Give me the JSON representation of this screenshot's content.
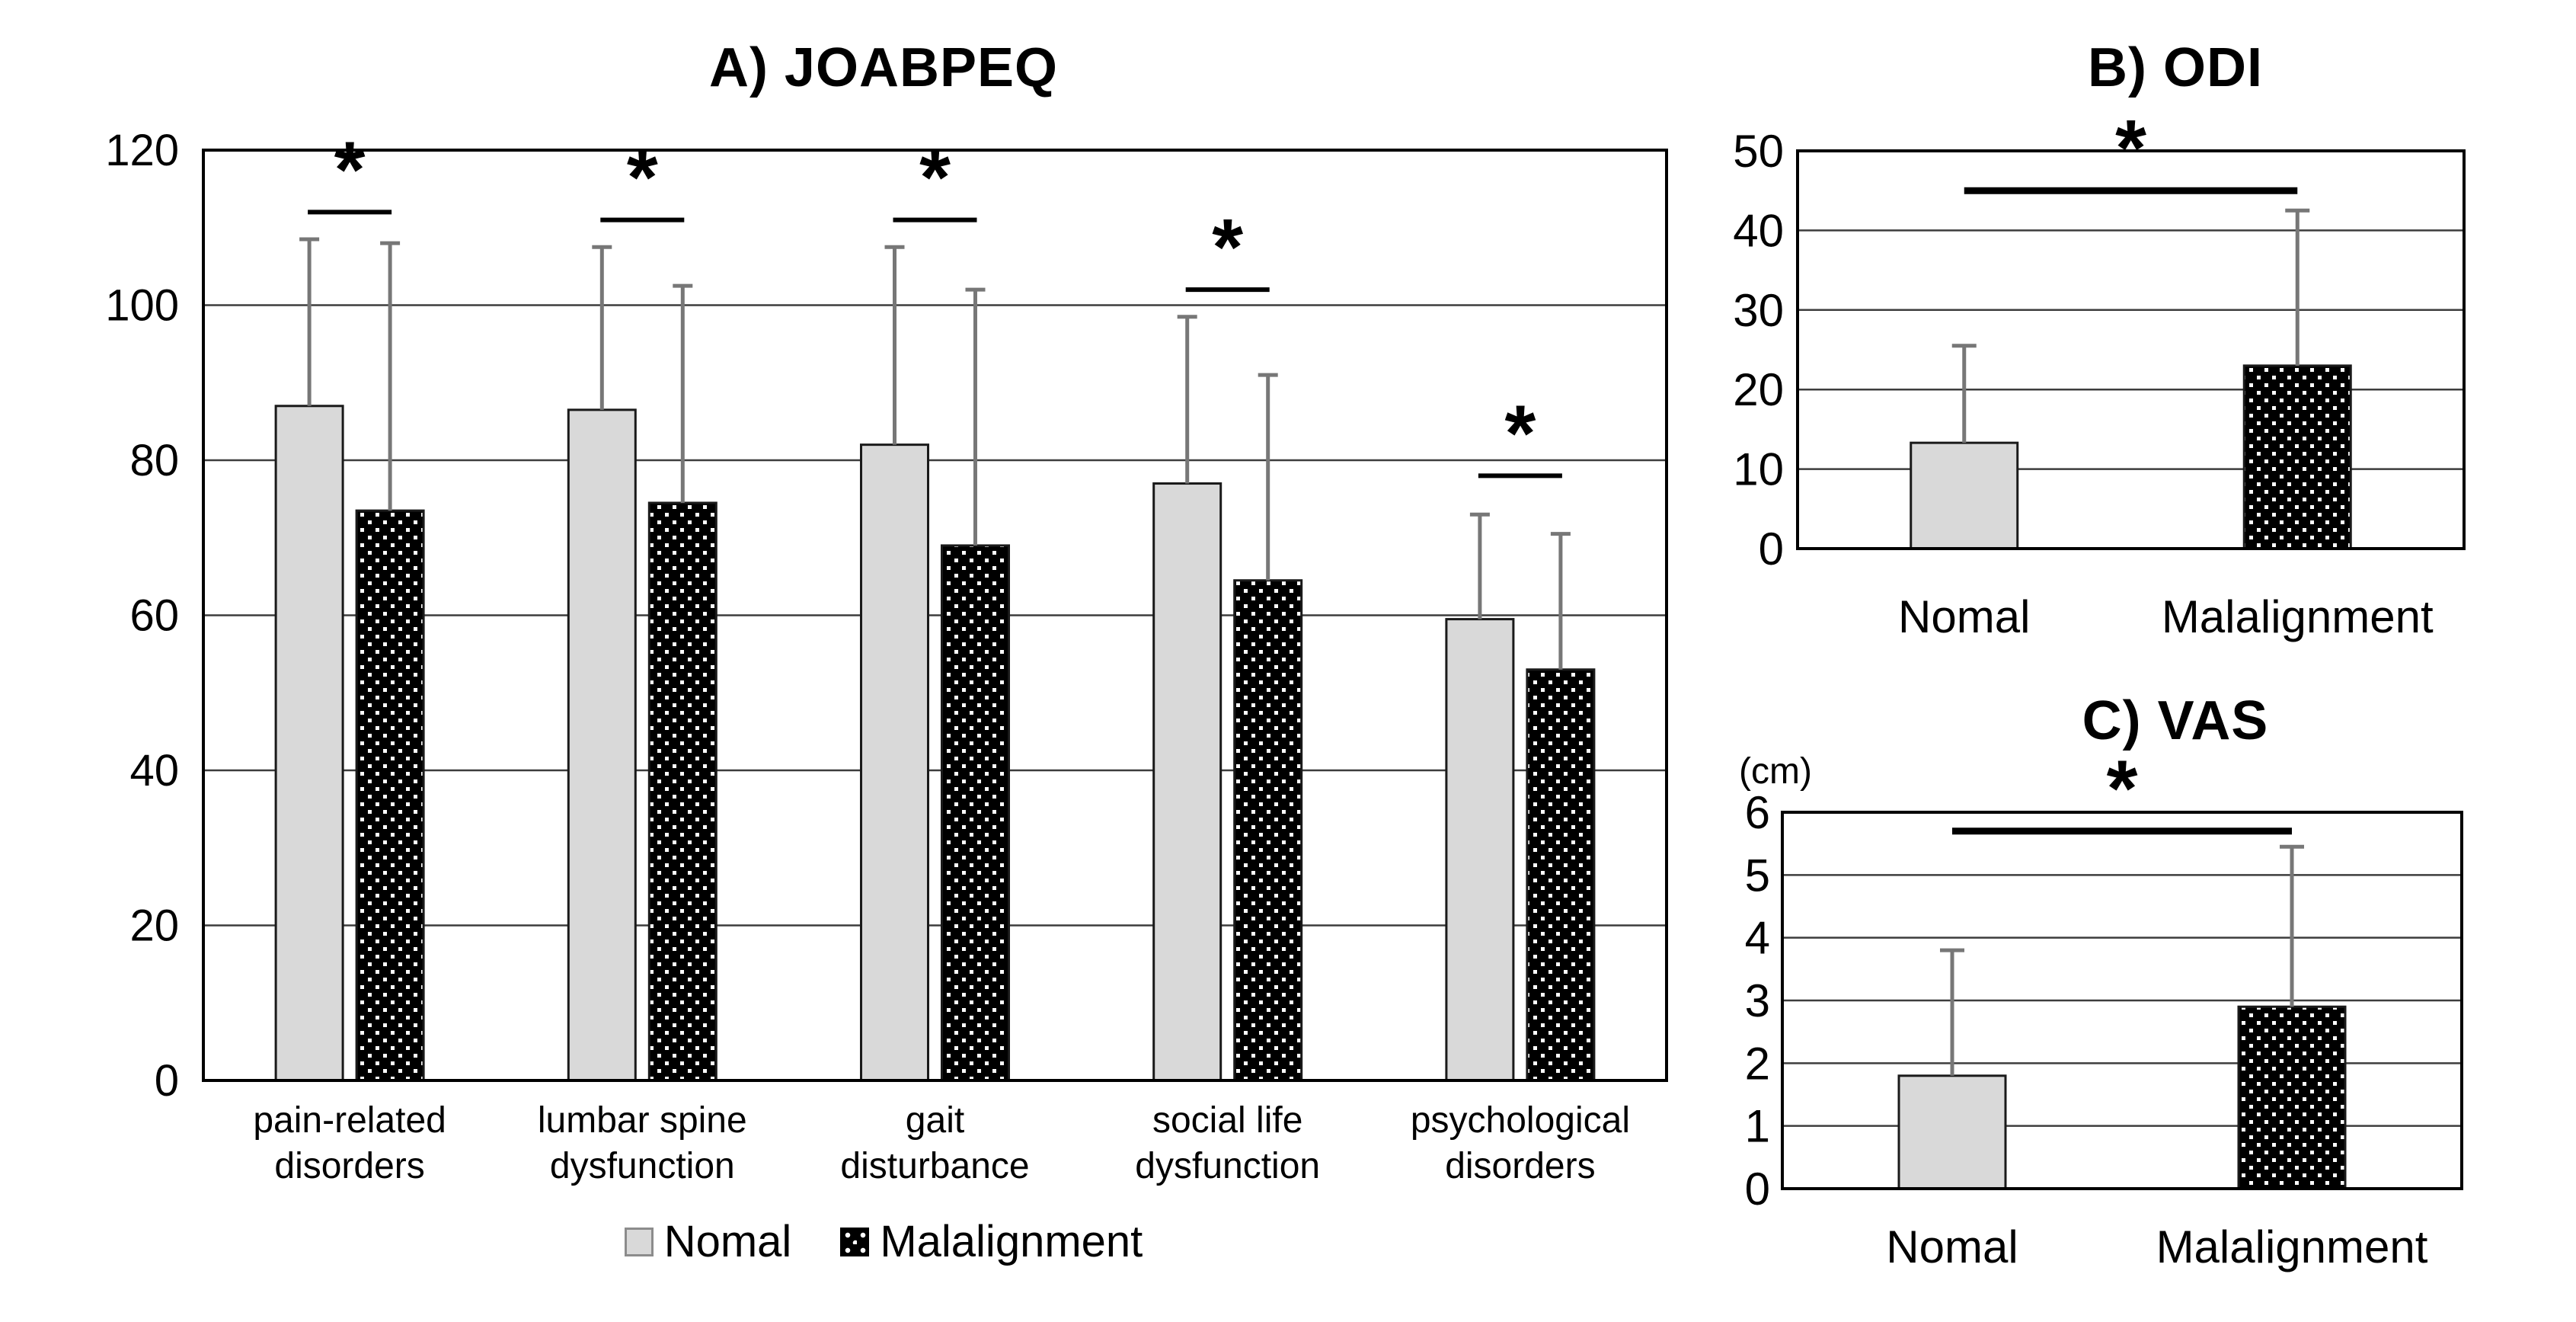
{
  "figure": {
    "background": "#ffffff",
    "colors": {
      "normal_bar_fill": "#d9d9d9",
      "malalignment_bar": "black-with-white-dots",
      "bar_border": "#1a1a1a",
      "error_bar": "#777777",
      "gridline": "#3d3d3d",
      "plot_border": "#000000",
      "text": "#000000"
    }
  },
  "legend": {
    "items": [
      {
        "label": "Nomal",
        "swatch": "gray"
      },
      {
        "label": "Malalignment",
        "swatch": "black-dotted"
      }
    ]
  },
  "chart_data": [
    {
      "id": "a",
      "type": "bar",
      "title": "A) JOABPEQ",
      "ylim": [
        0,
        120
      ],
      "ystep": 20,
      "yticks": [
        "0",
        "20",
        "40",
        "60",
        "80",
        "100",
        "120"
      ],
      "grid": true,
      "legend_position": "bottom",
      "categories": [
        "pain-related\ndisorders",
        "lumbar spine\ndysfunction",
        "gait\ndisturbance",
        "social life\ndysfunction",
        "psychological\ndisorders"
      ],
      "series": [
        {
          "name": "Nomal",
          "style": "gray",
          "values": [
            87,
            86.5,
            82,
            77,
            59.5
          ],
          "error_top": [
            108.5,
            107.5,
            107.5,
            98.5,
            73
          ]
        },
        {
          "name": "Malalignment",
          "style": "dotted",
          "values": [
            73.5,
            74.5,
            69,
            64.5,
            53
          ],
          "error_top": [
            108,
            102.5,
            102,
            91,
            70.5
          ]
        }
      ],
      "significance": [
        {
          "category": 0,
          "y": 112,
          "label": "*"
        },
        {
          "category": 1,
          "y": 111,
          "label": "*"
        },
        {
          "category": 2,
          "y": 111,
          "label": "*"
        },
        {
          "category": 3,
          "y": 102,
          "label": "*"
        },
        {
          "category": 4,
          "y": 78,
          "label": "*"
        }
      ]
    },
    {
      "id": "b",
      "type": "bar",
      "title": "B) ODI",
      "ylim": [
        0,
        50
      ],
      "ystep": 10,
      "yticks": [
        "0",
        "10",
        "20",
        "30",
        "40",
        "50"
      ],
      "grid": true,
      "categories": [
        "Nomal",
        "Malalignment"
      ],
      "bars": [
        {
          "series": "Nomal",
          "style": "gray",
          "value": 13.3,
          "error_top": 25.5
        },
        {
          "series": "Malalignment",
          "style": "dotted",
          "value": 23,
          "error_top": 42.5
        }
      ],
      "significance": [
        {
          "from": 0,
          "to": 1,
          "y": 45,
          "label": "*"
        }
      ]
    },
    {
      "id": "c",
      "type": "bar",
      "title": "C) VAS",
      "unit": "(cm)",
      "ylim": [
        0,
        6
      ],
      "ystep": 1,
      "yticks": [
        "0",
        "1",
        "2",
        "3",
        "4",
        "5",
        "6"
      ],
      "grid": true,
      "categories": [
        "Nomal",
        "Malalignment"
      ],
      "bars": [
        {
          "series": "Nomal",
          "style": "gray",
          "value": 1.8,
          "error_top": 3.8
        },
        {
          "series": "Malalignment",
          "style": "dotted",
          "value": 2.9,
          "error_top": 5.45
        }
      ],
      "significance": [
        {
          "from": 0,
          "to": 1,
          "y": 5.7,
          "label": "*"
        }
      ]
    }
  ]
}
